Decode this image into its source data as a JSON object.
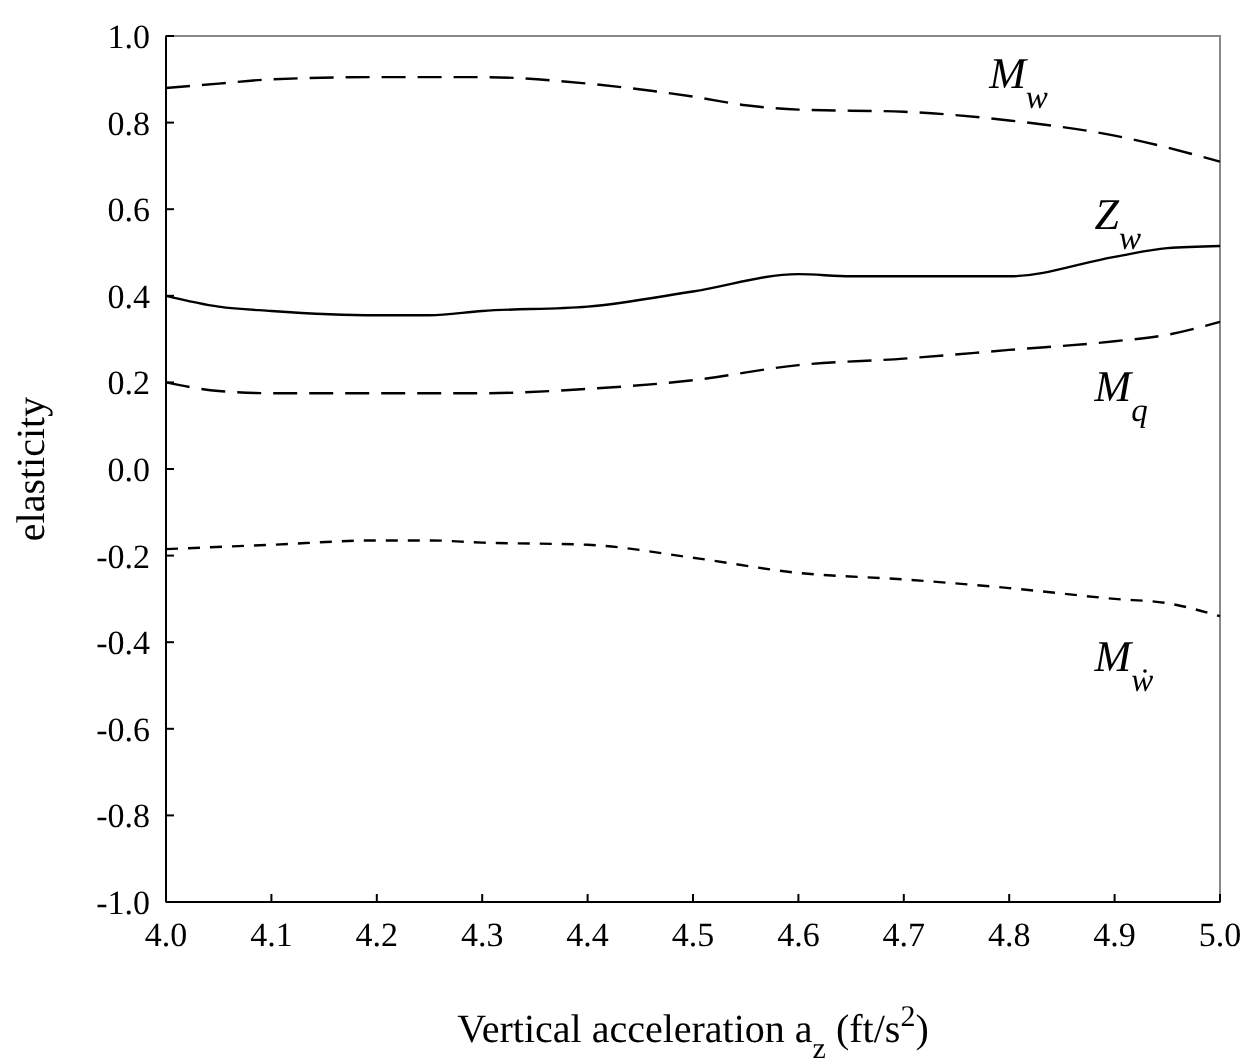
{
  "chart_data": {
    "type": "line",
    "xlabel": "Vertical acceleration  a$_{z}$ (ft/s$^{2}$)",
    "ylabel": "elasticity",
    "xlim": [
      4.0,
      5.0
    ],
    "xticks": [
      {
        "value": 4.0,
        "label": "4.0"
      },
      4.1,
      4.2,
      4.3,
      4.4,
      4.5,
      4.6,
      4.7,
      4.8,
      4.9,
      {
        "value": 5.0,
        "label": "5.0"
      }
    ],
    "ylim": [
      -1.0,
      1.0
    ],
    "yticks": [
      {
        "value": -1.0,
        "label": "-1.0"
      },
      -0.8,
      -0.6,
      -0.4,
      -0.2,
      {
        "value": 0,
        "label": "0.0"
      },
      0.2,
      0.4,
      0.6,
      0.8,
      {
        "value": 1.0,
        "label": "1.0"
      }
    ],
    "grid": false,
    "legend": false,
    "marker": "none",
    "series": [
      {
        "name": "M$_{w}$",
        "color": "#000000",
        "line_style": "dashed",
        "x": [
          4.0,
          4.05,
          4.1,
          4.2,
          4.3,
          4.4,
          4.5,
          4.55,
          4.6,
          4.7,
          4.8,
          4.9,
          5.0
        ],
        "values": [
          0.88,
          0.89,
          0.9,
          0.905,
          0.905,
          0.89,
          0.86,
          0.84,
          0.83,
          0.825,
          0.805,
          0.77,
          0.71
        ]
      },
      {
        "name": "Z$_{w}$",
        "color": "#000000",
        "line_style": "solid",
        "x": [
          4.0,
          4.05,
          4.1,
          4.2,
          4.25,
          4.3,
          4.4,
          4.5,
          4.6,
          4.65,
          4.8,
          4.9,
          4.95,
          5.0
        ],
        "values": [
          0.4,
          0.375,
          0.365,
          0.355,
          0.355,
          0.365,
          0.375,
          0.41,
          0.45,
          0.445,
          0.445,
          0.49,
          0.51,
          0.515
        ]
      },
      {
        "name": "M$_{q}$",
        "color": "#000000",
        "line_style": "dashed",
        "x": [
          4.0,
          4.05,
          4.1,
          4.3,
          4.4,
          4.5,
          4.6,
          4.7,
          4.8,
          4.9,
          4.95,
          5.0
        ],
        "values": [
          0.2,
          0.18,
          0.175,
          0.175,
          0.185,
          0.205,
          0.24,
          0.255,
          0.275,
          0.295,
          0.31,
          0.34
        ]
      },
      {
        "name": "M$_{ẇ}$",
        "color": "#000000",
        "line_style": "dotted",
        "x": [
          4.0,
          4.1,
          4.2,
          4.25,
          4.3,
          4.4,
          4.5,
          4.6,
          4.7,
          4.8,
          4.9,
          4.95,
          5.0
        ],
        "values": [
          -0.185,
          -0.175,
          -0.165,
          -0.165,
          -0.17,
          -0.175,
          -0.205,
          -0.24,
          -0.255,
          -0.275,
          -0.3,
          -0.31,
          -0.34
        ]
      }
    ]
  }
}
